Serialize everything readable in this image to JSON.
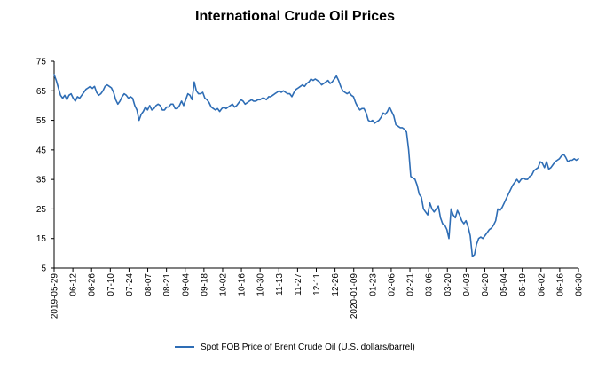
{
  "chart_data": {
    "type": "line",
    "title": "International Crude Oil Prices",
    "xlabel": "",
    "ylabel": "",
    "ylim": [
      5,
      75
    ],
    "yticks": [
      5,
      15,
      25,
      35,
      45,
      55,
      65,
      75
    ],
    "x_tick_labels": [
      "2019-05-29",
      "06-12",
      "06-26",
      "07-10",
      "07-24",
      "08-07",
      "08-21",
      "09-04",
      "09-18",
      "10-02",
      "10-16",
      "10-30",
      "11-13",
      "11-27",
      "12-11",
      "12-26",
      "2020-01-09",
      "01-23",
      "02-06",
      "02-21",
      "03-06",
      "03-20",
      "04-03",
      "04-20",
      "05-04",
      "05-19",
      "06-02",
      "06-16",
      "06-30"
    ],
    "grid": false,
    "legend_position": "bottom",
    "series": [
      {
        "name": "Spot FOB Price of Brent Crude Oil (U.S. dollars/barrel)",
        "color": "#2E6DB5",
        "values": [
          70.5,
          68.5,
          66,
          63.5,
          62.5,
          63.5,
          62,
          63.5,
          64,
          62.5,
          61.5,
          63,
          62.5,
          63.5,
          64.5,
          65.5,
          66,
          66.5,
          65.8,
          66.5,
          64.5,
          63.5,
          64,
          65,
          66.5,
          67,
          66.5,
          66,
          64.5,
          62,
          60.5,
          61.5,
          63,
          64,
          63.5,
          62.5,
          63,
          62.5,
          60,
          58.5,
          55,
          57,
          58,
          59.5,
          58.5,
          60,
          58.5,
          59,
          60,
          60.5,
          60,
          58.5,
          58.5,
          59.5,
          59.5,
          60.5,
          60.5,
          59,
          59,
          60,
          61.5,
          60,
          62,
          64,
          63.5,
          62,
          68,
          65,
          64,
          64,
          64.5,
          62.5,
          62,
          61,
          59.5,
          59,
          58.5,
          59,
          58,
          59,
          59.5,
          59,
          59.5,
          60,
          60.5,
          59.5,
          60,
          61,
          62,
          61.5,
          60.5,
          61,
          61.5,
          62,
          61.5,
          61.5,
          62,
          62,
          62.5,
          62.5,
          62,
          63,
          63,
          63.5,
          64,
          64.5,
          65,
          64.5,
          65,
          64.5,
          64,
          64,
          63,
          64.5,
          65.5,
          66,
          66.5,
          67,
          66.5,
          67.5,
          68,
          69,
          68.5,
          69,
          68.5,
          68,
          67,
          67.5,
          68,
          68.5,
          67.5,
          68,
          69,
          70,
          68.5,
          66.5,
          65,
          64.5,
          64,
          64.5,
          63.5,
          63,
          61,
          59.5,
          58.5,
          59,
          59,
          57.5,
          55,
          54.5,
          55,
          54,
          54.5,
          55,
          56,
          57.5,
          57,
          58,
          59.5,
          58,
          56.5,
          53.5,
          53,
          52.5,
          52.5,
          52,
          51,
          45,
          36,
          35.5,
          35,
          33,
          30,
          29,
          25,
          24,
          23,
          27,
          25,
          24,
          25,
          26,
          22,
          20,
          19.5,
          18,
          15,
          25,
          23,
          22,
          24.5,
          23,
          21,
          20,
          21,
          19,
          16,
          9,
          9.5,
          13,
          15,
          15.5,
          15,
          16,
          17,
          18,
          18.5,
          19.5,
          21,
          25,
          24.5,
          25.5,
          27,
          28.5,
          30,
          31.5,
          33,
          34,
          35,
          34,
          35,
          35.5,
          35,
          35,
          36,
          36.5,
          38,
          38.5,
          39,
          41,
          40.5,
          39,
          41,
          38.5,
          39,
          40,
          41,
          41.5,
          42,
          43,
          43.5,
          42.5,
          41,
          41.5,
          41.5,
          42,
          41.5,
          42
        ]
      }
    ]
  }
}
